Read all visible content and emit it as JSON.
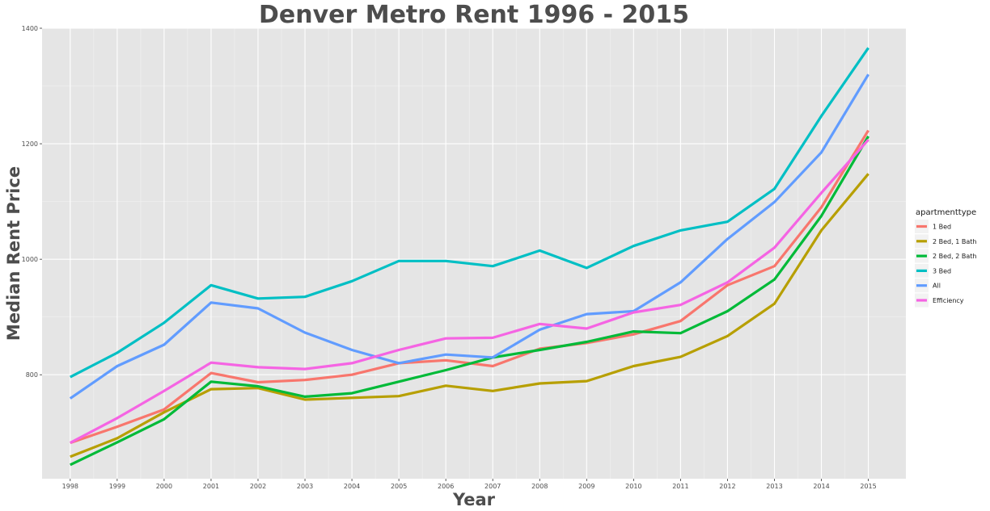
{
  "chart_data": {
    "type": "line",
    "title": "Denver Metro Rent 1996 - 2015",
    "xlabel": "Year",
    "ylabel": "Median Rent Price",
    "x": [
      1998,
      1999,
      2000,
      2001,
      2002,
      2003,
      2004,
      2005,
      2006,
      2007,
      2008,
      2009,
      2010,
      2011,
      2012,
      2013,
      2014,
      2015
    ],
    "xlim": [
      1997.4,
      2015.8
    ],
    "ylim": [
      620,
      1400
    ],
    "yticks": [
      800,
      1000,
      1200,
      1400
    ],
    "grid": true,
    "legend": {
      "title": "apartmenttype",
      "position": "right"
    },
    "series": [
      {
        "name": "1 Bed",
        "color": "#F8766D",
        "values": [
          682,
          710,
          740,
          803,
          787,
          791,
          800,
          820,
          825,
          815,
          845,
          855,
          870,
          893,
          955,
          988,
          1090,
          1223
        ]
      },
      {
        "name": "2 Bed, 1 Bath",
        "color": "#B79F00",
        "values": [
          658,
          690,
          735,
          775,
          777,
          757,
          760,
          763,
          781,
          772,
          785,
          789,
          815,
          831,
          867,
          923,
          1050,
          1148
        ]
      },
      {
        "name": "2 Bed, 2 Bath",
        "color": "#00BA38",
        "values": [
          644,
          683,
          723,
          788,
          780,
          762,
          768,
          788,
          808,
          830,
          843,
          857,
          875,
          872,
          910,
          965,
          1075,
          1213
        ]
      },
      {
        "name": "3 Bed",
        "color": "#00BFC4",
        "values": [
          796,
          838,
          890,
          955,
          932,
          935,
          962,
          997,
          997,
          988,
          1015,
          985,
          1023,
          1050,
          1065,
          1122,
          1248,
          1366
        ]
      },
      {
        "name": "All",
        "color": "#619CFF",
        "values": [
          759,
          815,
          852,
          925,
          915,
          873,
          843,
          820,
          835,
          830,
          878,
          905,
          910,
          960,
          1035,
          1099,
          1185,
          1320
        ]
      },
      {
        "name": "Efficiency",
        "color": "#F564E3",
        "values": [
          682,
          725,
          772,
          821,
          813,
          810,
          820,
          843,
          863,
          864,
          888,
          880,
          908,
          921,
          960,
          1020,
          1115,
          1207
        ]
      }
    ]
  }
}
